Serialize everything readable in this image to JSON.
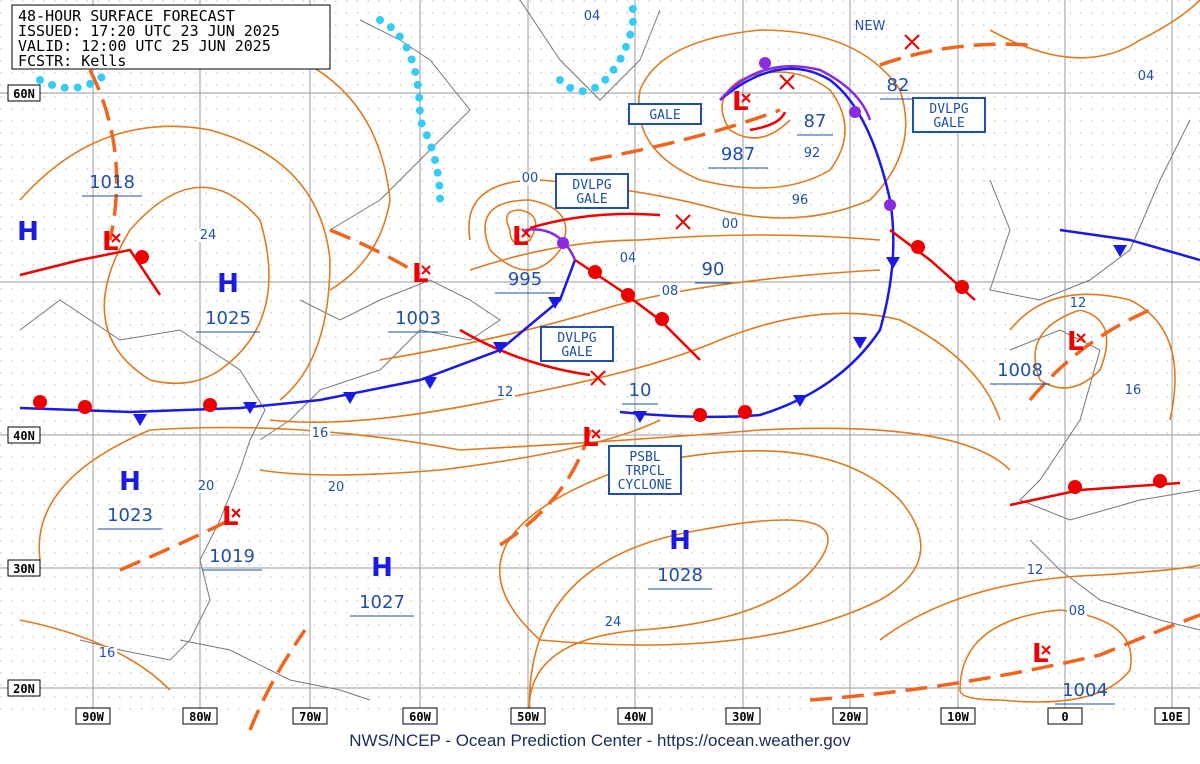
{
  "header": {
    "lines": [
      "48-HOUR SURFACE FORECAST",
      "ISSUED: 17:20 UTC 23 JUN 2025",
      "VALID: 12:00 UTC 25 JUN 2025",
      "FCSTR:  Kells"
    ]
  },
  "footer": "NWS/NCEP - Ocean Prediction Center - https://ocean.weather.gov",
  "lat_labels": [
    "60N",
    "40N",
    "30N",
    "20N"
  ],
  "lon_labels": [
    "90W",
    "80W",
    "70W",
    "60W",
    "50W",
    "40W",
    "30W",
    "20W",
    "10W",
    "0",
    "10E"
  ],
  "highs": [
    {
      "symbol": "H"
    },
    {
      "symbol": "H",
      "pressure": "1025"
    },
    {
      "symbol": "H",
      "pressure": "1023"
    },
    {
      "symbol": "H",
      "pressure": "1027"
    },
    {
      "symbol": "H",
      "pressure": "1028"
    }
  ],
  "lows": [
    {
      "pressure": "1018"
    },
    {
      "pressure": "1003"
    },
    {
      "pressure": "995"
    },
    {
      "pressure": "987"
    },
    {
      "pressure": "1019"
    },
    {
      "pressure": "1008"
    },
    {
      "pressure": "1004"
    }
  ],
  "forecast_values": [
    "87",
    "82",
    "90",
    "10"
  ],
  "isobar_labels": [
    "04",
    "00",
    "00",
    "04",
    "08",
    "12",
    "16",
    "20",
    "20",
    "24",
    "92",
    "96",
    "12",
    "16",
    "12",
    "08",
    "24",
    "16",
    "04"
  ],
  "warnings": [
    {
      "lines": [
        "GALE"
      ]
    },
    {
      "lines": [
        "DVLPG",
        "GALE"
      ]
    },
    {
      "lines": [
        "DVLPG",
        "GALE"
      ]
    },
    {
      "lines": [
        "DVLPG",
        "GALE"
      ]
    },
    {
      "lines": [
        "PSBL",
        "TRPCL",
        "CYCLONE"
      ]
    }
  ],
  "new_label": "NEW"
}
